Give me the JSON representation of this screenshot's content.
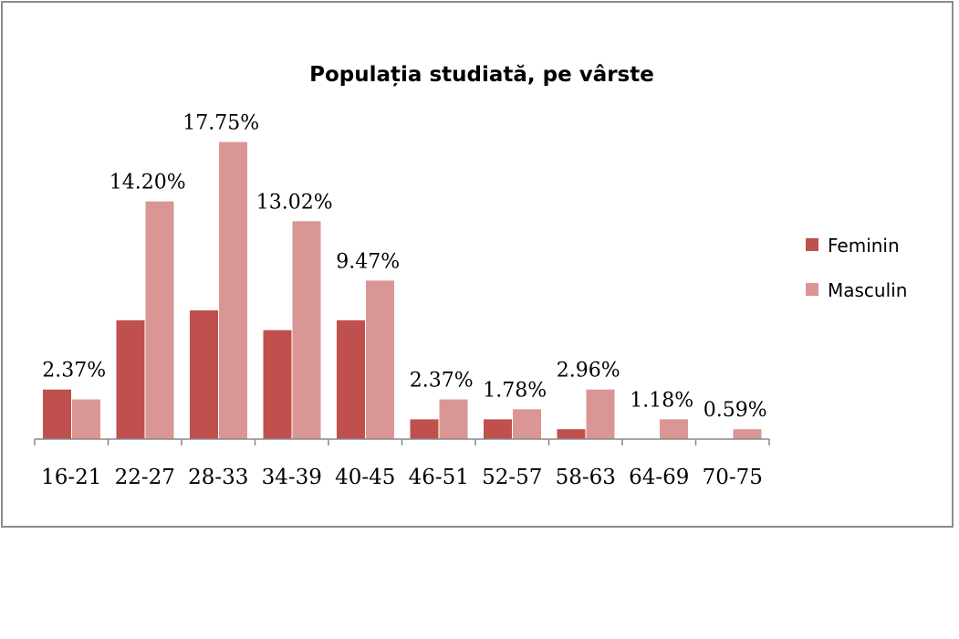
{
  "chart_data": {
    "type": "bar",
    "title": "Populația studiată, pe vârste",
    "xlabel": "",
    "ylabel": "",
    "categories": [
      "16-21",
      "22-27",
      "28-33",
      "34-39",
      "40-45",
      "46-51",
      "52-57",
      "58-63",
      "64-69",
      "70-75"
    ],
    "series": [
      {
        "name": "Feminin",
        "color": "#c0504d",
        "values": [
          2.96,
          7.1,
          7.69,
          6.51,
          7.1,
          1.18,
          1.18,
          0.59,
          0,
          0
        ]
      },
      {
        "name": "Masculin",
        "color": "#d99694",
        "values": [
          2.37,
          14.2,
          17.75,
          13.02,
          9.47,
          2.37,
          1.78,
          2.96,
          1.18,
          0.59
        ]
      }
    ],
    "data_labels": [
      "2.37%",
      "14.20%",
      "17.75%",
      "13.02%",
      "9.47%",
      "2.37%",
      "1.78%",
      "2.96%",
      "1.18%",
      "0.59%"
    ],
    "ylim": [
      0,
      18
    ],
    "grid": false,
    "legend_position": "right"
  }
}
